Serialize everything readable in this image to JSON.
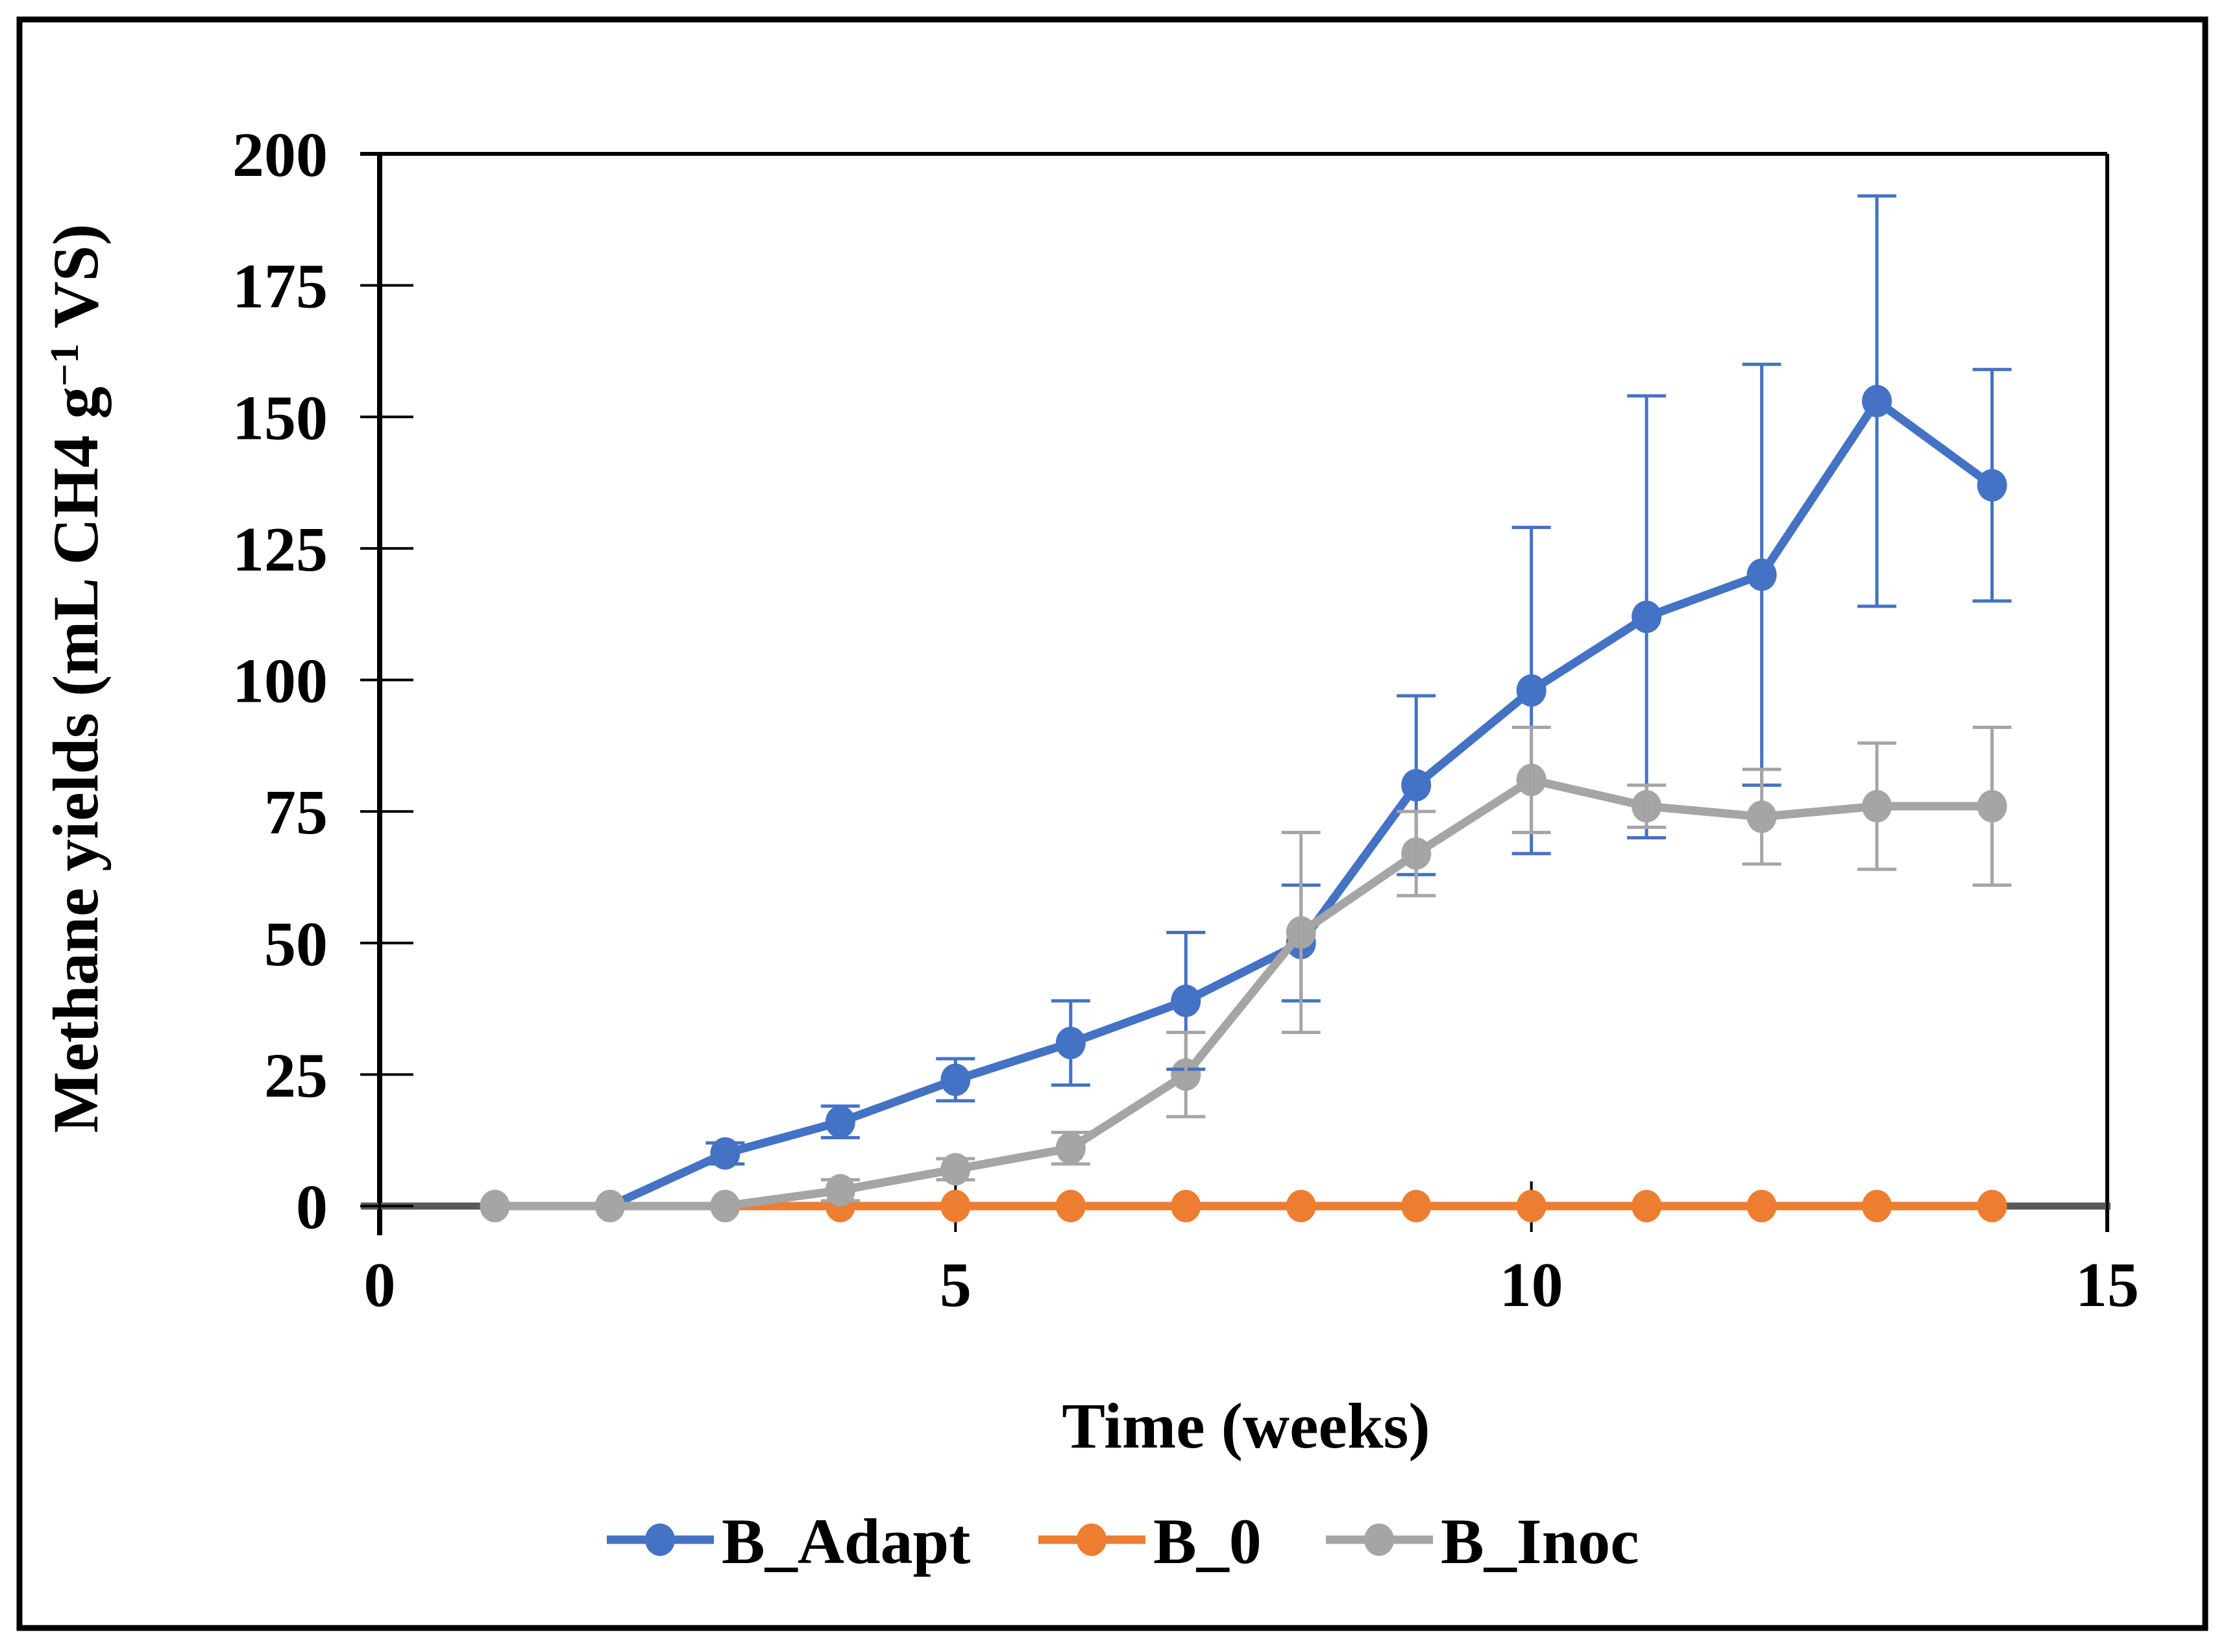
{
  "figure": {
    "background": "#ffffff",
    "border_color": "#000000"
  },
  "chart_data": {
    "type": "line",
    "title": "",
    "xlabel": "Time (weeks)",
    "ylabel": "Methane yields (mL CH4 g−1 VS)",
    "ylabel_parts": {
      "pre": "Methane yields (mL CH4 g",
      "sup": "−1",
      "post": " VS)"
    },
    "xlim": [
      0,
      15
    ],
    "ylim": [
      0,
      200
    ],
    "x_ticks": [
      0,
      5,
      10,
      15
    ],
    "y_ticks": [
      0,
      25,
      50,
      75,
      100,
      125,
      150,
      175,
      200
    ],
    "grid": false,
    "legend_position": "bottom",
    "series": [
      {
        "name": "B_Adapt",
        "color": "#4472C4",
        "x": [
          2,
          3,
          4,
          5,
          6,
          7,
          8,
          9,
          10,
          11,
          12,
          13,
          14
        ],
        "values": [
          0,
          10,
          16,
          24,
          31,
          39,
          50,
          80,
          98,
          112,
          120,
          153,
          137
        ],
        "errors": [
          0,
          2,
          3,
          4,
          8,
          13,
          11,
          17,
          31,
          42,
          40,
          39,
          22
        ]
      },
      {
        "name": "B_0",
        "color": "#ED7D31",
        "x": [
          1,
          2,
          3,
          4,
          5,
          6,
          7,
          8,
          9,
          10,
          11,
          12,
          13,
          14
        ],
        "values": [
          0,
          0,
          0,
          0,
          0,
          0,
          0,
          0,
          0,
          0,
          0,
          0,
          0,
          0
        ],
        "errors": [
          0,
          0,
          0,
          0,
          0,
          0,
          0,
          0,
          0,
          0,
          0,
          0,
          0,
          0
        ]
      },
      {
        "name": "B_Inoc",
        "color": "#A5A5A5",
        "x": [
          1,
          2,
          3,
          4,
          5,
          6,
          7,
          8,
          9,
          10,
          11,
          12,
          13,
          14
        ],
        "values": [
          0,
          0,
          0,
          3,
          7,
          11,
          25,
          52,
          67,
          81,
          76,
          74,
          76,
          76
        ],
        "errors": [
          0,
          0,
          0,
          2,
          2,
          3,
          8,
          19,
          8,
          10,
          4,
          9,
          12,
          15
        ]
      }
    ]
  }
}
